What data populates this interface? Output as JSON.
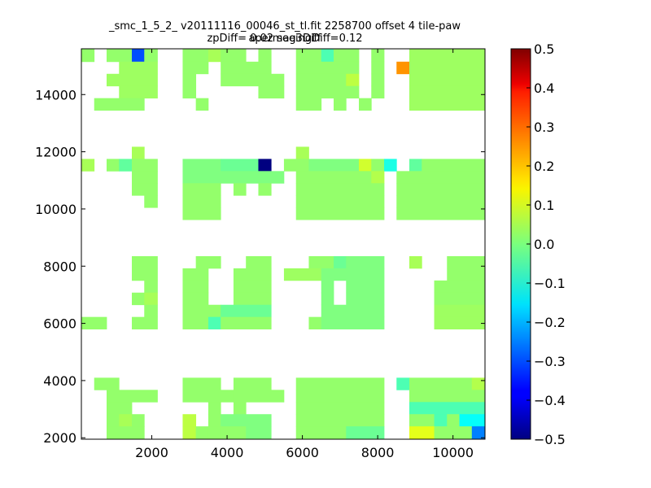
{
  "chart_data": {
    "type": "heatmap",
    "title": "_smc_1_5_2_ v20111116_00046_st_tl.fit 2258700 offset 4 tile-paw apermag3Diff",
    "subtitle": "zpDiff= 0.02 seeingDiff=0.12",
    "xlabel": "",
    "ylabel": "",
    "xlim": [
      130,
      10850
    ],
    "ylim": [
      1950,
      15600
    ],
    "xticks": [
      2000,
      4000,
      6000,
      8000,
      10000
    ],
    "yticks": [
      2000,
      4000,
      6000,
      8000,
      10000,
      12000,
      14000
    ],
    "xtick_labels": [
      "2000",
      "4000",
      "6000",
      "8000",
      "10000"
    ],
    "ytick_labels": [
      "2000",
      "4000",
      "6000",
      "8000",
      "10000",
      "12000",
      "14000"
    ],
    "colorbar": {
      "colormap": "jet",
      "vmin": -0.5,
      "vmax": 0.5,
      "ticks": [
        0.5,
        0.4,
        0.3,
        0.2,
        0.1,
        0.0,
        -0.1,
        -0.2,
        -0.3,
        -0.4,
        -0.5
      ],
      "tick_labels": [
        "0.5",
        "0.4",
        "0.3",
        "0.2",
        "0.1",
        "0.0",
        "−0.1",
        "−0.2",
        "−0.3",
        "−0.4",
        "−0.5"
      ]
    },
    "grid": false,
    "cell_size": [
      335,
      425
    ],
    "cells_note": "Each entry: [x_start, x_end, y_start, y_end, value] in data units",
    "cells": [
      [
        130,
        470,
        15150,
        15600,
        0.02
      ],
      [
        800,
        1470,
        15150,
        15600,
        0.02
      ],
      [
        1470,
        1800,
        15150,
        15600,
        -0.3
      ],
      [
        1800,
        2150,
        15150,
        15600,
        0.02
      ],
      [
        2820,
        3500,
        15150,
        15600,
        0.02
      ],
      [
        3500,
        3830,
        15150,
        15600,
        0.04
      ],
      [
        3830,
        4500,
        15150,
        15600,
        0.02
      ],
      [
        4830,
        5170,
        15150,
        15600,
        0.02
      ],
      [
        5830,
        6500,
        15150,
        15600,
        0.02
      ],
      [
        6500,
        6830,
        15150,
        15600,
        -0.05
      ],
      [
        6830,
        7500,
        15150,
        15600,
        0.02
      ],
      [
        7830,
        8170,
        15150,
        15600,
        0.02
      ],
      [
        8840,
        10850,
        15150,
        15600,
        0.03
      ],
      [
        8500,
        8840,
        14725,
        15150,
        0.23
      ],
      [
        1130,
        2150,
        14725,
        15150,
        0.03
      ],
      [
        2820,
        3500,
        14725,
        15150,
        0.02
      ],
      [
        3830,
        5170,
        14725,
        15150,
        0.02
      ],
      [
        5830,
        7500,
        14725,
        15150,
        0.02
      ],
      [
        7830,
        8170,
        14725,
        15150,
        0.02
      ],
      [
        8840,
        10850,
        14725,
        15150,
        0.03
      ],
      [
        800,
        2150,
        14300,
        14725,
        0.03
      ],
      [
        2820,
        3170,
        14300,
        14725,
        0.02
      ],
      [
        3830,
        5510,
        14300,
        14725,
        0.02
      ],
      [
        5830,
        7160,
        14300,
        14725,
        0.02
      ],
      [
        7160,
        7500,
        14300,
        14725,
        0.06
      ],
      [
        7830,
        8170,
        14300,
        14725,
        0.02
      ],
      [
        8840,
        10850,
        14300,
        14725,
        0.03
      ],
      [
        1130,
        2150,
        13875,
        14300,
        0.03
      ],
      [
        2820,
        3170,
        13875,
        14300,
        0.02
      ],
      [
        4830,
        5510,
        13875,
        14300,
        0.02
      ],
      [
        5830,
        7500,
        13875,
        14300,
        0.02
      ],
      [
        7830,
        8170,
        13875,
        14300,
        0.02
      ],
      [
        8840,
        10850,
        13875,
        14300,
        0.03
      ],
      [
        470,
        1800,
        13450,
        13875,
        0.02
      ],
      [
        3170,
        3500,
        13450,
        13875,
        0.02
      ],
      [
        5830,
        6500,
        13450,
        13875,
        0.02
      ],
      [
        6830,
        7160,
        13450,
        13875,
        0.02
      ],
      [
        7500,
        7830,
        13450,
        13875,
        0.02
      ],
      [
        8840,
        10850,
        13450,
        13875,
        0.03
      ],
      [
        1470,
        1800,
        11750,
        12175,
        0.04
      ],
      [
        5830,
        6170,
        11750,
        12175,
        0.04
      ],
      [
        130,
        470,
        11325,
        11750,
        0.04
      ],
      [
        800,
        1130,
        11325,
        11750,
        0.02
      ],
      [
        1130,
        1470,
        11325,
        11750,
        -0.03
      ],
      [
        1470,
        2150,
        11325,
        11750,
        0.02
      ],
      [
        2820,
        3830,
        11325,
        11750,
        0.0
      ],
      [
        3830,
        4830,
        11325,
        11750,
        -0.02
      ],
      [
        4830,
        5170,
        11325,
        11750,
        -0.5
      ],
      [
        5510,
        6170,
        11325,
        11750,
        0.02
      ],
      [
        6170,
        7500,
        11325,
        11750,
        0.0
      ],
      [
        7500,
        7830,
        11325,
        11750,
        0.08
      ],
      [
        7830,
        8170,
        11325,
        11750,
        0.02
      ],
      [
        8170,
        8500,
        11325,
        11750,
        -0.1
      ],
      [
        8840,
        9170,
        11325,
        11750,
        -0.03
      ],
      [
        9170,
        10850,
        11325,
        11750,
        0.02
      ],
      [
        1470,
        2150,
        10900,
        11325,
        0.02
      ],
      [
        2820,
        5510,
        10900,
        11325,
        0.0
      ],
      [
        5830,
        7830,
        10900,
        11325,
        0.02
      ],
      [
        7830,
        8170,
        10900,
        11325,
        0.05
      ],
      [
        8500,
        10850,
        10900,
        11325,
        0.02
      ],
      [
        1470,
        2150,
        10475,
        10900,
        0.02
      ],
      [
        2820,
        3830,
        10475,
        10900,
        0.02
      ],
      [
        4170,
        4500,
        10475,
        10900,
        0.02
      ],
      [
        4830,
        5170,
        10475,
        10900,
        0.02
      ],
      [
        5830,
        8170,
        10475,
        10900,
        0.02
      ],
      [
        8500,
        10850,
        10475,
        10900,
        0.02
      ],
      [
        1800,
        2150,
        10050,
        10475,
        0.02
      ],
      [
        2820,
        3830,
        10050,
        10475,
        0.02
      ],
      [
        5830,
        8170,
        10050,
        10475,
        0.02
      ],
      [
        8500,
        10850,
        10050,
        10475,
        0.02
      ],
      [
        2820,
        3830,
        9625,
        10050,
        0.02
      ],
      [
        5830,
        8170,
        9625,
        10050,
        0.02
      ],
      [
        8500,
        10850,
        9625,
        10050,
        0.02
      ],
      [
        1470,
        2150,
        7925,
        8350,
        0.02
      ],
      [
        3170,
        3830,
        7925,
        8350,
        0.02
      ],
      [
        4500,
        5170,
        7925,
        8350,
        0.02
      ],
      [
        6170,
        6830,
        7925,
        8350,
        0.02
      ],
      [
        6830,
        7160,
        7925,
        8350,
        -0.02
      ],
      [
        7160,
        8170,
        7925,
        8350,
        0.0
      ],
      [
        8840,
        9170,
        7925,
        8350,
        0.04
      ],
      [
        9840,
        10850,
        7925,
        8350,
        0.02
      ],
      [
        1470,
        2150,
        7500,
        7925,
        0.02
      ],
      [
        2820,
        3500,
        7500,
        7925,
        0.02
      ],
      [
        4170,
        5170,
        7500,
        7925,
        0.02
      ],
      [
        5510,
        6500,
        7500,
        7925,
        0.03
      ],
      [
        6500,
        8170,
        7500,
        7925,
        0.0
      ],
      [
        9840,
        10850,
        7500,
        7925,
        0.02
      ],
      [
        1800,
        2150,
        7075,
        7500,
        0.02
      ],
      [
        2820,
        3500,
        7075,
        7500,
        0.02
      ],
      [
        4170,
        5170,
        7075,
        7500,
        0.02
      ],
      [
        6500,
        6830,
        7075,
        7500,
        0.0
      ],
      [
        7160,
        8170,
        7075,
        7500,
        0.0
      ],
      [
        9500,
        10850,
        7075,
        7500,
        0.02
      ],
      [
        1470,
        1800,
        6650,
        7075,
        0.02
      ],
      [
        1800,
        2150,
        6650,
        7075,
        0.04
      ],
      [
        2820,
        3500,
        6650,
        7075,
        0.02
      ],
      [
        4170,
        5170,
        6650,
        7075,
        0.02
      ],
      [
        6500,
        6830,
        6650,
        7075,
        0.0
      ],
      [
        7160,
        8170,
        6650,
        7075,
        0.0
      ],
      [
        9500,
        10850,
        6650,
        7075,
        0.02
      ],
      [
        1800,
        2150,
        6225,
        6650,
        0.02
      ],
      [
        2820,
        3830,
        6225,
        6650,
        0.02
      ],
      [
        3830,
        5170,
        6225,
        6650,
        -0.02
      ],
      [
        6500,
        8170,
        6225,
        6650,
        0.0
      ],
      [
        9500,
        10850,
        6225,
        6650,
        0.03
      ],
      [
        130,
        800,
        5800,
        6225,
        0.02
      ],
      [
        1470,
        2150,
        5800,
        6225,
        0.02
      ],
      [
        2820,
        3500,
        5800,
        6225,
        0.02
      ],
      [
        3500,
        3830,
        5800,
        6225,
        -0.05
      ],
      [
        3830,
        5170,
        5800,
        6225,
        0.02
      ],
      [
        6170,
        6500,
        5800,
        6225,
        0.02
      ],
      [
        6500,
        8170,
        5800,
        6225,
        0.0
      ],
      [
        9500,
        10850,
        5800,
        6225,
        0.03
      ],
      [
        470,
        1130,
        3675,
        4100,
        0.02
      ],
      [
        2820,
        3830,
        3675,
        4100,
        0.02
      ],
      [
        4170,
        5170,
        3675,
        4100,
        0.02
      ],
      [
        5830,
        6500,
        3675,
        4100,
        0.02
      ],
      [
        6500,
        8170,
        3675,
        4100,
        0.02
      ],
      [
        8500,
        8840,
        3675,
        4100,
        -0.05
      ],
      [
        8840,
        10500,
        3675,
        4100,
        0.02
      ],
      [
        10500,
        10850,
        3675,
        4100,
        0.05
      ],
      [
        800,
        2150,
        3250,
        3675,
        0.02
      ],
      [
        2820,
        4170,
        3250,
        3675,
        0.02
      ],
      [
        4170,
        5510,
        3250,
        3675,
        0.02
      ],
      [
        5830,
        8170,
        3250,
        3675,
        0.02
      ],
      [
        8840,
        10850,
        3250,
        3675,
        0.02
      ],
      [
        800,
        1470,
        2825,
        3250,
        0.02
      ],
      [
        3500,
        3830,
        2825,
        3250,
        0.02
      ],
      [
        4170,
        4500,
        2825,
        3250,
        0.02
      ],
      [
        5830,
        8170,
        2825,
        3250,
        0.02
      ],
      [
        8840,
        10850,
        2825,
        3250,
        -0.05
      ],
      [
        800,
        1130,
        2400,
        2825,
        0.02
      ],
      [
        1130,
        1470,
        2400,
        2825,
        0.04
      ],
      [
        1470,
        1800,
        2400,
        2825,
        0.02
      ],
      [
        2820,
        3170,
        2400,
        2825,
        0.06
      ],
      [
        3500,
        3830,
        2400,
        2825,
        0.02
      ],
      [
        3830,
        5170,
        2400,
        2825,
        0.0
      ],
      [
        5830,
        8170,
        2400,
        2825,
        0.02
      ],
      [
        8840,
        9500,
        2400,
        2825,
        0.02
      ],
      [
        9500,
        9840,
        2400,
        2825,
        -0.05
      ],
      [
        9840,
        10170,
        2400,
        2825,
        0.02
      ],
      [
        10170,
        10500,
        2400,
        2825,
        -0.12
      ],
      [
        10500,
        10850,
        2400,
        2825,
        -0.12
      ],
      [
        800,
        1800,
        1950,
        2400,
        0.02
      ],
      [
        2820,
        3170,
        1950,
        2400,
        0.06
      ],
      [
        3170,
        3500,
        1950,
        2400,
        0.02
      ],
      [
        3500,
        3830,
        1950,
        2400,
        0.02
      ],
      [
        3830,
        4500,
        1950,
        2400,
        0.02
      ],
      [
        4500,
        5170,
        1950,
        2400,
        0.0
      ],
      [
        5830,
        6500,
        1950,
        2400,
        0.02
      ],
      [
        6500,
        7160,
        1950,
        2400,
        0.02
      ],
      [
        7160,
        8170,
        1950,
        2400,
        -0.02
      ],
      [
        8840,
        9500,
        1950,
        2400,
        0.1
      ],
      [
        9500,
        10500,
        1950,
        2400,
        0.02
      ],
      [
        10500,
        10850,
        1950,
        2400,
        -0.25
      ]
    ]
  }
}
